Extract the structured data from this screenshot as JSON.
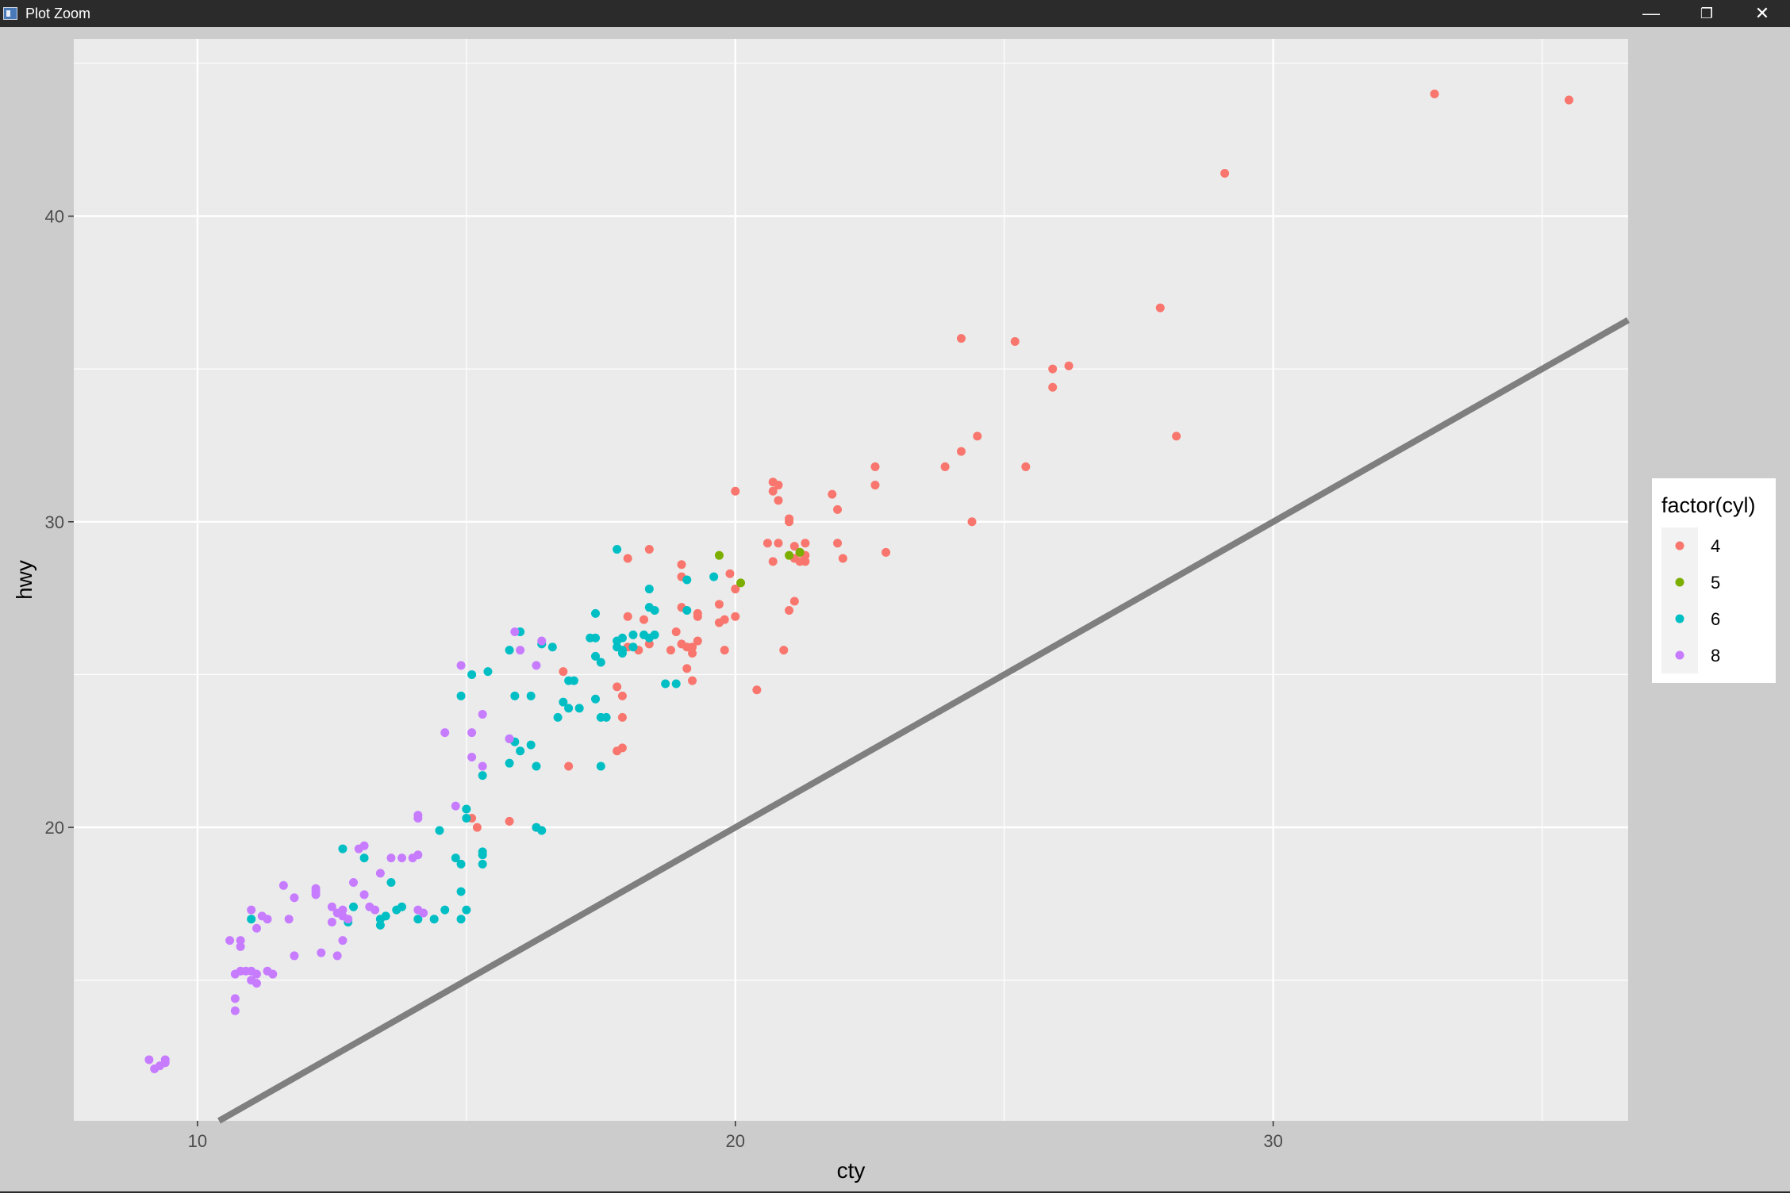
{
  "window": {
    "title": "Plot Zoom",
    "app_icon": "rstudio-window-icon",
    "buttons": {
      "minimize": "—",
      "restore": "❐",
      "close": "✕"
    }
  },
  "chart_data": {
    "type": "scatter",
    "title": "",
    "xlabel": "cty",
    "ylabel": "hwy",
    "xlim": [
      7.7,
      36.6
    ],
    "ylim": [
      10.4,
      45.8
    ],
    "x_ticks": [
      10,
      20,
      30
    ],
    "y_ticks": [
      20,
      30,
      40
    ],
    "x_minor_breaks": [
      15,
      25,
      35
    ],
    "y_minor_breaks": [
      15,
      25,
      35,
      45
    ],
    "grid": true,
    "panel_background": "#EBEBEB",
    "grid_color": "#FFFFFF",
    "legend": {
      "title": "factor(cyl)",
      "placement": "right",
      "entries": [
        "4",
        "5",
        "6",
        "8"
      ]
    },
    "reference_line": {
      "intercept": 0,
      "slope": 1,
      "color": "#7F7F7F"
    },
    "series": [
      {
        "name": "4",
        "color": "#F8766D",
        "points": [
          [
            33.0,
            44.0
          ],
          [
            35.5,
            43.8
          ],
          [
            29.1,
            41.4
          ],
          [
            27.9,
            37.0
          ],
          [
            24.2,
            36.0
          ],
          [
            25.2,
            35.9
          ],
          [
            25.9,
            35.0
          ],
          [
            26.2,
            35.1
          ],
          [
            25.9,
            34.4
          ],
          [
            28.2,
            32.8
          ],
          [
            24.5,
            32.8
          ],
          [
            24.2,
            32.3
          ],
          [
            22.6,
            31.8
          ],
          [
            23.9,
            31.8
          ],
          [
            25.4,
            31.8
          ],
          [
            22.6,
            31.2
          ],
          [
            20.7,
            31.3
          ],
          [
            20.8,
            31.2
          ],
          [
            20.0,
            31.0
          ],
          [
            20.7,
            31.0
          ],
          [
            21.8,
            30.9
          ],
          [
            20.8,
            30.7
          ],
          [
            21.9,
            30.4
          ],
          [
            21.0,
            30.1
          ],
          [
            24.4,
            30.0
          ],
          [
            21.0,
            30.0
          ],
          [
            20.6,
            29.3
          ],
          [
            20.8,
            29.3
          ],
          [
            21.9,
            29.3
          ],
          [
            21.1,
            29.2
          ],
          [
            21.3,
            29.3
          ],
          [
            22.8,
            29.0
          ],
          [
            21.2,
            29.0
          ],
          [
            21.1,
            28.8
          ],
          [
            21.3,
            28.9
          ],
          [
            20.7,
            28.7
          ],
          [
            22.0,
            28.8
          ],
          [
            21.2,
            28.7
          ],
          [
            21.3,
            28.7
          ],
          [
            18.4,
            29.1
          ],
          [
            18.0,
            28.8
          ],
          [
            19.0,
            28.6
          ],
          [
            19.0,
            28.2
          ],
          [
            19.9,
            28.3
          ],
          [
            19.7,
            27.3
          ],
          [
            20.0,
            27.8
          ],
          [
            19.3,
            27.0
          ],
          [
            19.3,
            26.9
          ],
          [
            19.0,
            27.2
          ],
          [
            20.0,
            26.9
          ],
          [
            19.8,
            26.8
          ],
          [
            19.7,
            26.7
          ],
          [
            18.9,
            26.4
          ],
          [
            19.0,
            26.0
          ],
          [
            18.8,
            25.8
          ],
          [
            19.1,
            25.9
          ],
          [
            19.2,
            25.9
          ],
          [
            19.3,
            26.1
          ],
          [
            19.8,
            25.8
          ],
          [
            19.2,
            25.7
          ],
          [
            18.0,
            25.9
          ],
          [
            18.2,
            25.8
          ],
          [
            18.4,
            26.0
          ],
          [
            18.3,
            26.8
          ],
          [
            18.0,
            26.9
          ],
          [
            20.9,
            25.8
          ],
          [
            19.1,
            25.2
          ],
          [
            19.2,
            24.8
          ],
          [
            16.8,
            25.1
          ],
          [
            17.8,
            24.6
          ],
          [
            17.9,
            24.3
          ],
          [
            20.4,
            24.5
          ],
          [
            17.9,
            23.6
          ],
          [
            17.9,
            22.6
          ],
          [
            16.9,
            22.0
          ],
          [
            17.8,
            22.5
          ],
          [
            15.1,
            20.3
          ],
          [
            15.2,
            20.0
          ],
          [
            15.8,
            20.2
          ],
          [
            16.3,
            20.0
          ],
          [
            21.0,
            27.1
          ],
          [
            21.1,
            27.4
          ]
        ]
      },
      {
        "name": "5",
        "color": "#7CAE00",
        "points": [
          [
            19.7,
            28.9
          ],
          [
            21.0,
            28.9
          ],
          [
            20.1,
            28.0
          ],
          [
            21.2,
            29.0
          ]
        ]
      },
      {
        "name": "6",
        "color": "#00BFC4",
        "points": [
          [
            17.8,
            29.1
          ],
          [
            19.6,
            28.2
          ],
          [
            19.1,
            28.1
          ],
          [
            18.4,
            27.8
          ],
          [
            18.4,
            27.2
          ],
          [
            18.5,
            27.1
          ],
          [
            19.1,
            27.1
          ],
          [
            17.4,
            27.0
          ],
          [
            17.3,
            26.2
          ],
          [
            17.4,
            26.2
          ],
          [
            17.8,
            26.1
          ],
          [
            17.9,
            26.2
          ],
          [
            18.1,
            26.3
          ],
          [
            18.3,
            26.3
          ],
          [
            18.4,
            26.2
          ],
          [
            18.5,
            26.3
          ],
          [
            16.0,
            26.4
          ],
          [
            16.4,
            26.0
          ],
          [
            16.6,
            25.9
          ],
          [
            15.8,
            25.8
          ],
          [
            17.9,
            25.8
          ],
          [
            18.1,
            25.9
          ],
          [
            17.4,
            25.6
          ],
          [
            17.8,
            25.9
          ],
          [
            17.9,
            25.7
          ],
          [
            17.5,
            25.4
          ],
          [
            15.4,
            25.1
          ],
          [
            15.1,
            25.0
          ],
          [
            16.9,
            24.8
          ],
          [
            17.0,
            24.8
          ],
          [
            18.7,
            24.7
          ],
          [
            18.9,
            24.7
          ],
          [
            16.2,
            24.3
          ],
          [
            15.9,
            24.3
          ],
          [
            14.9,
            24.3
          ],
          [
            16.8,
            24.1
          ],
          [
            17.4,
            24.2
          ],
          [
            16.9,
            23.9
          ],
          [
            17.1,
            23.9
          ],
          [
            17.5,
            23.6
          ],
          [
            17.6,
            23.6
          ],
          [
            16.7,
            23.6
          ],
          [
            15.9,
            22.8
          ],
          [
            16.2,
            22.7
          ],
          [
            16.0,
            22.5
          ],
          [
            15.8,
            22.9
          ],
          [
            15.8,
            22.1
          ],
          [
            16.3,
            22.0
          ],
          [
            17.5,
            22.0
          ],
          [
            15.3,
            21.7
          ],
          [
            15.0,
            20.6
          ],
          [
            15.0,
            20.3
          ],
          [
            16.3,
            20.0
          ],
          [
            16.4,
            19.9
          ],
          [
            14.5,
            19.9
          ],
          [
            12.7,
            19.3
          ],
          [
            13.1,
            19.0
          ],
          [
            15.3,
            19.2
          ],
          [
            15.3,
            19.1
          ],
          [
            14.8,
            19.0
          ],
          [
            14.9,
            18.8
          ],
          [
            15.3,
            18.8
          ],
          [
            13.6,
            18.2
          ],
          [
            14.9,
            17.9
          ],
          [
            12.9,
            17.4
          ],
          [
            13.8,
            17.4
          ],
          [
            13.7,
            17.3
          ],
          [
            15.0,
            17.3
          ],
          [
            14.6,
            17.3
          ],
          [
            13.5,
            17.1
          ],
          [
            13.4,
            17.0
          ],
          [
            14.1,
            17.0
          ],
          [
            14.4,
            17.0
          ],
          [
            14.9,
            17.0
          ],
          [
            12.8,
            16.9
          ],
          [
            13.4,
            16.8
          ],
          [
            11.0,
            17.0
          ]
        ]
      },
      {
        "name": "8",
        "color": "#C77CFF",
        "points": [
          [
            15.9,
            26.4
          ],
          [
            16.4,
            26.1
          ],
          [
            16.3,
            25.3
          ],
          [
            16.0,
            25.8
          ],
          [
            14.9,
            25.3
          ],
          [
            15.3,
            23.7
          ],
          [
            14.6,
            23.1
          ],
          [
            15.1,
            23.1
          ],
          [
            15.8,
            22.9
          ],
          [
            15.1,
            22.3
          ],
          [
            15.3,
            22.0
          ],
          [
            14.8,
            20.7
          ],
          [
            14.1,
            20.4
          ],
          [
            14.1,
            20.3
          ],
          [
            13.0,
            19.3
          ],
          [
            13.1,
            19.4
          ],
          [
            13.6,
            19.0
          ],
          [
            13.8,
            19.0
          ],
          [
            14.0,
            19.0
          ],
          [
            14.1,
            19.1
          ],
          [
            13.4,
            18.5
          ],
          [
            12.9,
            18.2
          ],
          [
            11.6,
            18.1
          ],
          [
            12.2,
            18.0
          ],
          [
            12.2,
            17.8
          ],
          [
            11.8,
            17.7
          ],
          [
            12.2,
            17.9
          ],
          [
            13.1,
            17.8
          ],
          [
            12.5,
            17.4
          ],
          [
            12.7,
            17.3
          ],
          [
            12.6,
            17.2
          ],
          [
            12.8,
            17.0
          ],
          [
            12.5,
            16.9
          ],
          [
            12.7,
            17.1
          ],
          [
            13.2,
            17.4
          ],
          [
            13.3,
            17.3
          ],
          [
            14.1,
            17.3
          ],
          [
            14.2,
            17.2
          ],
          [
            11.0,
            17.3
          ],
          [
            11.2,
            17.1
          ],
          [
            11.3,
            17.0
          ],
          [
            11.7,
            17.0
          ],
          [
            11.1,
            16.7
          ],
          [
            12.7,
            16.3
          ],
          [
            10.6,
            16.3
          ],
          [
            10.8,
            16.3
          ],
          [
            10.8,
            16.1
          ],
          [
            11.8,
            15.8
          ],
          [
            12.3,
            15.9
          ],
          [
            12.6,
            15.8
          ],
          [
            10.9,
            15.3
          ],
          [
            10.7,
            15.2
          ],
          [
            10.8,
            15.3
          ],
          [
            11.0,
            15.3
          ],
          [
            11.1,
            15.2
          ],
          [
            11.3,
            15.3
          ],
          [
            11.4,
            15.2
          ],
          [
            11.0,
            15.0
          ],
          [
            11.1,
            14.9
          ],
          [
            10.7,
            14.4
          ],
          [
            10.7,
            14.0
          ],
          [
            9.1,
            12.4
          ],
          [
            9.4,
            12.4
          ],
          [
            9.4,
            12.3
          ],
          [
            9.2,
            12.1
          ],
          [
            9.3,
            12.2
          ]
        ]
      }
    ]
  }
}
